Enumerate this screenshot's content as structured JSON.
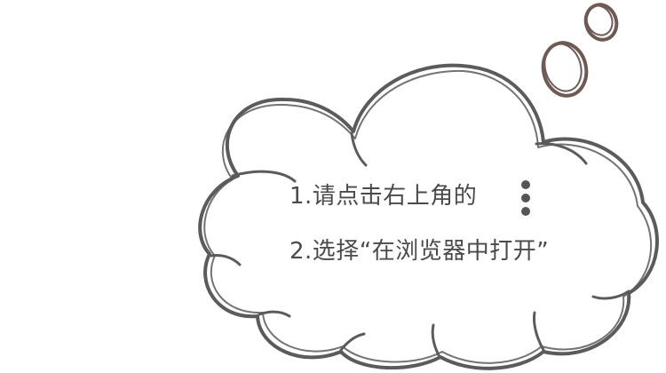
{
  "instructions": {
    "step1": "1.请点击右上角的",
    "step2": "2.选择“在浏览器中打开”"
  },
  "icons": {
    "menu": "more-vertical-icon",
    "cloud": "thought-cloud-icon"
  },
  "colors": {
    "cloud_stroke": "#5b5b5b",
    "bubble_stroke": "#6e5a55",
    "text": "#4a4a4a",
    "dots": "#555555"
  }
}
